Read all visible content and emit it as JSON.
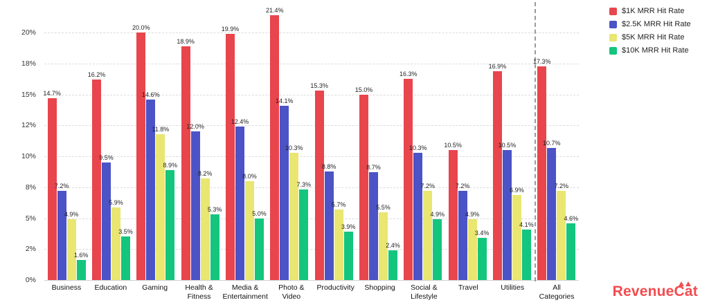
{
  "chart_data": {
    "type": "bar",
    "title": "",
    "xlabel": "",
    "ylabel": "",
    "ylim": [
      0,
      22.2
    ],
    "grid": true,
    "legend_position": "top-right",
    "separator_before_category": "All Categories",
    "categories": [
      "Business",
      "Education",
      "Gaming",
      "Health & Fitness",
      "Media & Entertainment",
      "Photo & Video",
      "Productivity",
      "Shopping",
      "Social & Lifestyle",
      "Travel",
      "Utilities",
      "All Categories"
    ],
    "y_ticks": [
      {
        "value": 0,
        "label": "0%"
      },
      {
        "value": 2.5,
        "label": "2%"
      },
      {
        "value": 5,
        "label": "5%"
      },
      {
        "value": 7.5,
        "label": "8%"
      },
      {
        "value": 10,
        "label": "10%"
      },
      {
        "value": 12.5,
        "label": "12%"
      },
      {
        "value": 15,
        "label": "15%"
      },
      {
        "value": 17.5,
        "label": "18%"
      },
      {
        "value": 20,
        "label": "20%"
      }
    ],
    "series": [
      {
        "name": "$1K MRR Hit Rate",
        "color": "#e8454d",
        "values": [
          14.7,
          16.2,
          20.0,
          18.9,
          19.9,
          21.4,
          15.3,
          15.0,
          16.3,
          10.5,
          16.9,
          17.3
        ]
      },
      {
        "name": "$2.5K MRR Hit Rate",
        "color": "#4b53c6",
        "values": [
          7.2,
          9.5,
          14.6,
          12.0,
          12.4,
          14.1,
          8.8,
          8.7,
          10.3,
          7.2,
          10.5,
          10.7
        ]
      },
      {
        "name": "$5K MRR Hit Rate",
        "color": "#e9e671",
        "values": [
          4.9,
          5.9,
          11.8,
          8.2,
          8.0,
          10.3,
          5.7,
          5.5,
          7.2,
          4.9,
          6.9,
          7.2
        ]
      },
      {
        "name": "$10K MRR Hit Rate",
        "color": "#14c57e",
        "values": [
          1.6,
          3.5,
          8.9,
          5.3,
          5.0,
          7.3,
          3.9,
          2.4,
          4.9,
          3.4,
          4.1,
          4.6
        ]
      }
    ]
  },
  "branding": {
    "logo_text": "RevenueCat"
  }
}
